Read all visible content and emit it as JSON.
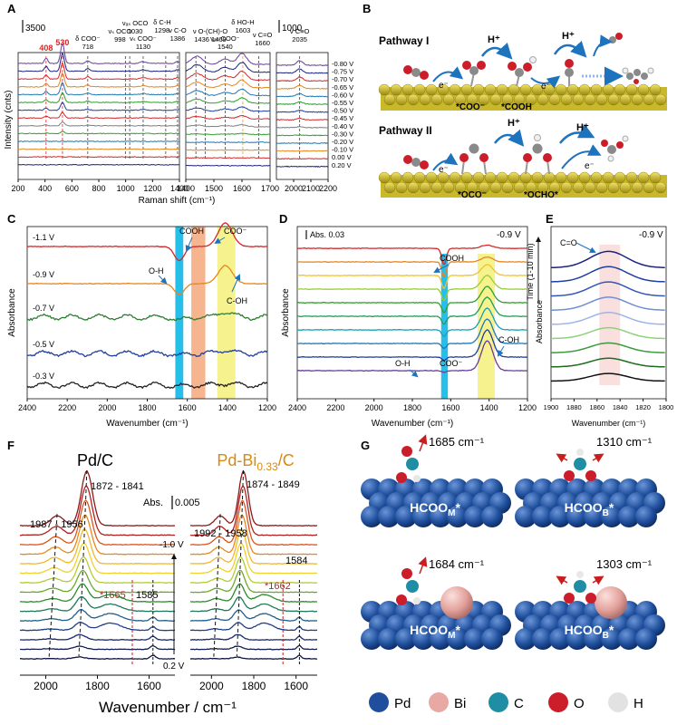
{
  "figure": {
    "legend": [
      {
        "label": "Pd",
        "color": "#1f4f9c"
      },
      {
        "label": "Bi",
        "color": "#e8a8a4"
      },
      {
        "label": "C",
        "color": "#1f8da3"
      },
      {
        "label": "O",
        "color": "#cc1d2a"
      },
      {
        "label": "H",
        "color": "#e2e2e2"
      }
    ],
    "panelB": {
      "letter": "B",
      "pathway1": {
        "title": "Pathway I",
        "labels": [
          "*COO⁻",
          "*COOH",
          "H⁺",
          "H⁺",
          "e⁻",
          "e⁻"
        ]
      },
      "pathway2": {
        "title": "Pathway II",
        "labels": [
          "*OCO⁻",
          "*OCHO*",
          "H⁺",
          "H⁺",
          "e⁻",
          "e⁻"
        ]
      }
    },
    "panelG": {
      "letter": "G",
      "structures": [
        {
          "label": "HCOO",
          "sub": "M",
          "freq": "1685 cm⁻¹",
          "hasBi": false
        },
        {
          "label": "HCOO",
          "sub": "B",
          "freq": "1310 cm⁻¹",
          "hasBi": false
        },
        {
          "label": "HCOO",
          "sub": "M",
          "freq": "1684 cm⁻¹",
          "hasBi": true
        },
        {
          "label": "HCOO",
          "sub": "B",
          "freq": "1303 cm⁻¹",
          "hasBi": true
        }
      ]
    }
  },
  "chart_data": [
    {
      "id": "A",
      "type": "line",
      "letter": "A",
      "xlabel": "Raman shift (cm⁻¹)",
      "ylabel": "Intensity (cnts)",
      "scale_bars": [
        "3500",
        "1000"
      ],
      "segments": [
        {
          "xlim": [
            200,
            1400
          ],
          "xticks": [
            200,
            400,
            600,
            800,
            1000,
            1200,
            1400
          ]
        },
        {
          "xlim": [
            1400,
            1700
          ],
          "xticks": [
            1400,
            1500,
            1600,
            1700
          ]
        },
        {
          "xlim": [
            1900,
            2200
          ],
          "xticks": [
            2000,
            2100,
            2200
          ]
        }
      ],
      "potentials": [
        "-0.80 V",
        "-0.75 V",
        "-0.70 V",
        "-0.65 V",
        "-0.60 V",
        "-0.55 V",
        "-0.50 V",
        "-0.45 V",
        "-0.40 V",
        "-0.30 V",
        "-0.20 V",
        "-0.10 V",
        "0.00 V",
        "0.20 V"
      ],
      "colors": [
        "#6a3d9a",
        "#1a237e",
        "#d62728",
        "#e6861f",
        "#1f77b4",
        "#2ca02c",
        "#1f3fa0",
        "#d62728",
        "#7f7f7f",
        "#2ca02c",
        "#1f77b4",
        "#e6861f",
        "#d62728",
        "#1a237e"
      ],
      "annotations": [
        {
          "text": "408",
          "x": 408,
          "color": "#d62728"
        },
        {
          "text": "530",
          "x": 530,
          "color": "#d62728"
        },
        {
          "text": "δ COO⁻ 718",
          "x": 718,
          "color": "#222"
        },
        {
          "text": "νₛ OCO 998",
          "x": 998,
          "color": "#222"
        },
        {
          "text": "νₐₛ OCO 1030",
          "x": 1030,
          "color": "#222"
        },
        {
          "text": "νₛ COO⁻ 1130",
          "x": 1130,
          "color": "#222"
        },
        {
          "text": "δ C-H 1298",
          "x": 1298,
          "color": "#222"
        },
        {
          "text": "ν C-O 1386",
          "x": 1386,
          "color": "#222"
        },
        {
          "text": "ν O-(CH)-O 1436 1469",
          "x": 1450,
          "color": "#222"
        },
        {
          "text": "νₐₛ COO⁻ 1540",
          "x": 1540,
          "color": "#222"
        },
        {
          "text": "δ HO-H 1603",
          "x": 1603,
          "color": "#222"
        },
        {
          "text": "ν C=O 1660",
          "x": 1660,
          "color": "#222"
        },
        {
          "text": "ν C≡O 2035",
          "x": 2035,
          "color": "#222"
        }
      ]
    },
    {
      "id": "C",
      "type": "line",
      "letter": "C",
      "xlabel": "Wavenumber (cm⁻¹)",
      "ylabel": "Absorbance",
      "xlim": [
        2400,
        1200
      ],
      "xticks": [
        2400,
        2200,
        2000,
        1800,
        1600,
        1400,
        1200
      ],
      "series": [
        {
          "name": "-1.1 V",
          "color": "#d62728"
        },
        {
          "name": "-0.9 V",
          "color": "#e6861f"
        },
        {
          "name": "-0.7 V",
          "color": "#2e7d32"
        },
        {
          "name": "-0.5 V",
          "color": "#1f3fa0"
        },
        {
          "name": "-0.3 V",
          "color": "#222222"
        }
      ],
      "bands": [
        {
          "from": 1660,
          "to": 1620,
          "color": "#00b4e6"
        },
        {
          "from": 1580,
          "to": 1510,
          "color": "#f5a87a"
        },
        {
          "from": 1450,
          "to": 1360,
          "color": "#f5f07a"
        }
      ],
      "annotations": [
        "COOH",
        "COO⁻",
        "O-H",
        "C-OH"
      ]
    },
    {
      "id": "D",
      "type": "line",
      "letter": "D",
      "xlabel": "Wavenumber (cm⁻¹)",
      "ylabel": "Absorbance",
      "xlim": [
        2400,
        1200
      ],
      "xticks": [
        2400,
        2200,
        2000,
        1800,
        1600,
        1400,
        1200
      ],
      "scale": "Abs. 0.03",
      "potential": "-0.9 V",
      "time_label": "Time (1-10 min)",
      "colors": [
        "#d62728",
        "#e6861f",
        "#f2c12e",
        "#9acd32",
        "#2ca02c",
        "#1f9d55",
        "#17a0b8",
        "#1f77b4",
        "#1f3fa0",
        "#6a3d9a"
      ],
      "bands": [
        {
          "from": 1650,
          "to": 1615,
          "color": "#00b4e6"
        },
        {
          "from": 1460,
          "to": 1370,
          "color": "#f5f07a"
        }
      ],
      "annotations": [
        "COOH",
        "O-H",
        "COO⁻",
        "C-OH"
      ]
    },
    {
      "id": "E",
      "type": "line",
      "letter": "E",
      "xlabel": "Wavenumber (cm⁻¹)",
      "ylabel": "Absorbance",
      "xlim": [
        1900,
        1800
      ],
      "xticks": [
        1900,
        1880,
        1860,
        1840,
        1820,
        1800
      ],
      "potential": "-0.9 V",
      "annotation": "C=O",
      "colors": [
        "#1a237e",
        "#1f3fa0",
        "#3355bb",
        "#6f8fd6",
        "#a0b4e8",
        "#8fd17a",
        "#3d9a3d",
        "#1f6b1f",
        "#111111"
      ]
    },
    {
      "id": "F1",
      "type": "line",
      "letter": "F",
      "title": "Pd/C",
      "xlim": [
        2100,
        1500
      ],
      "xticks": [
        2000,
        1800,
        1600
      ],
      "annotations": [
        "1872 - 1841",
        "1987 - 1956",
        "*1665",
        "1585"
      ],
      "scale": "Abs.  0.005",
      "colors": [
        "#8b1a1a",
        "#b22222",
        "#d9541e",
        "#e68a1f",
        "#f2b82e",
        "#f2d12e",
        "#b5cc32",
        "#6aaa2e",
        "#2e8b2e",
        "#1f7a5a",
        "#1f5f8a",
        "#1f3f8a",
        "#1a2a6e",
        "#141f55",
        "#0e1540"
      ]
    },
    {
      "id": "F2",
      "type": "line",
      "title": "Pd-Bi",
      "title_sub": "0.33",
      "title_tail": "/C",
      "xlim": [
        2100,
        1500
      ],
      "xticks": [
        2000,
        1800,
        1600
      ],
      "annotations": [
        "1874 - 1849",
        "1992 - 1958",
        "*1662",
        "1584"
      ],
      "potentials": [
        "-1.0 V",
        "0.2 V"
      ],
      "xlabel": "Wavenumber / cm⁻¹",
      "colors": [
        "#8b1a1a",
        "#b22222",
        "#d9541e",
        "#e68a1f",
        "#f2b82e",
        "#f2d12e",
        "#b5cc32",
        "#6aaa2e",
        "#2e8b2e",
        "#1f7a5a",
        "#1f5f8a",
        "#1f3f8a",
        "#1a2a6e",
        "#141f55",
        "#0e1540"
      ]
    }
  ]
}
